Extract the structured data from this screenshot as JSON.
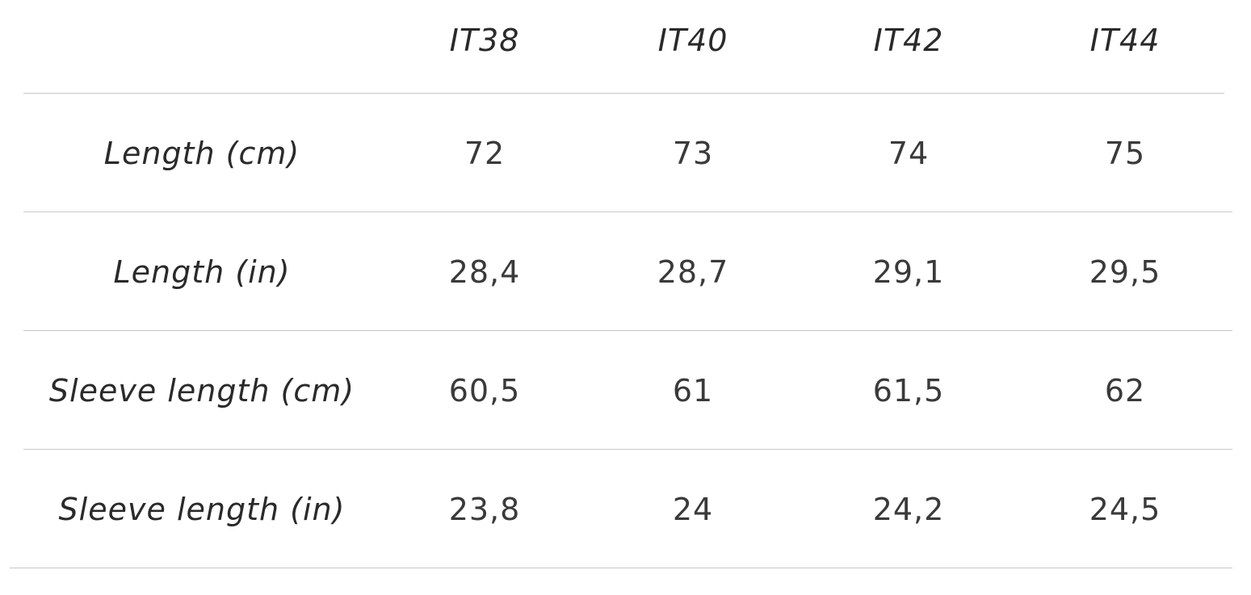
{
  "table": {
    "columns": [
      "IT38",
      "IT40",
      "IT42",
      "IT44"
    ],
    "rows": [
      {
        "label": "Length (cm)",
        "cells": [
          "72",
          "73",
          "74",
          "75"
        ]
      },
      {
        "label": "Length (in)",
        "cells": [
          "28,4",
          "28,7",
          "29,1",
          "29,5"
        ]
      },
      {
        "label": "Sleeve length (cm)",
        "cells": [
          "60,5",
          "61",
          "61,5",
          "62"
        ]
      },
      {
        "label": "Sleeve length (in)",
        "cells": [
          "23,8",
          "24",
          "24,2",
          "24,5"
        ]
      }
    ]
  }
}
